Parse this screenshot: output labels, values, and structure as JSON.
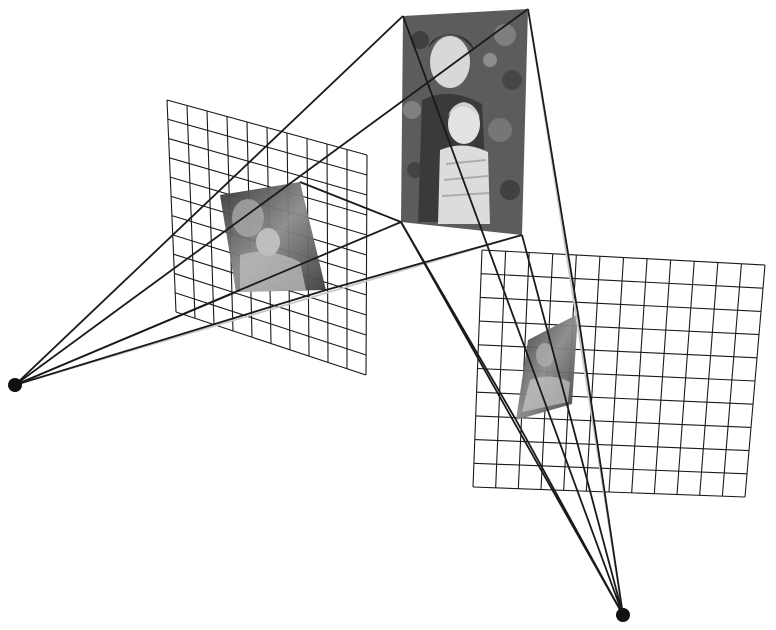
{
  "figure": {
    "kind": "two-view-projection",
    "cameras": [
      {
        "name": "camera-left",
        "icon": "camera-center-dot"
      },
      {
        "name": "camera-right",
        "icon": "camera-center-dot"
      }
    ],
    "image_planes": [
      {
        "name": "image-plane-left",
        "grid_columns": 10,
        "grid_rows": 11,
        "style": "grid"
      },
      {
        "name": "image-plane-right",
        "grid_columns": 12,
        "grid_rows": 10,
        "style": "grid"
      }
    ],
    "scene_plane": {
      "name": "scene-photo-plane",
      "content": "photograph"
    },
    "colors": {
      "lines": "#1a1a1a",
      "faded_rays": "#c8c8c8",
      "photo_dark": "#3a3a3a",
      "photo_mid": "#7a7a7a",
      "photo_light": "#d0d0d0",
      "background": "#ffffff"
    }
  }
}
